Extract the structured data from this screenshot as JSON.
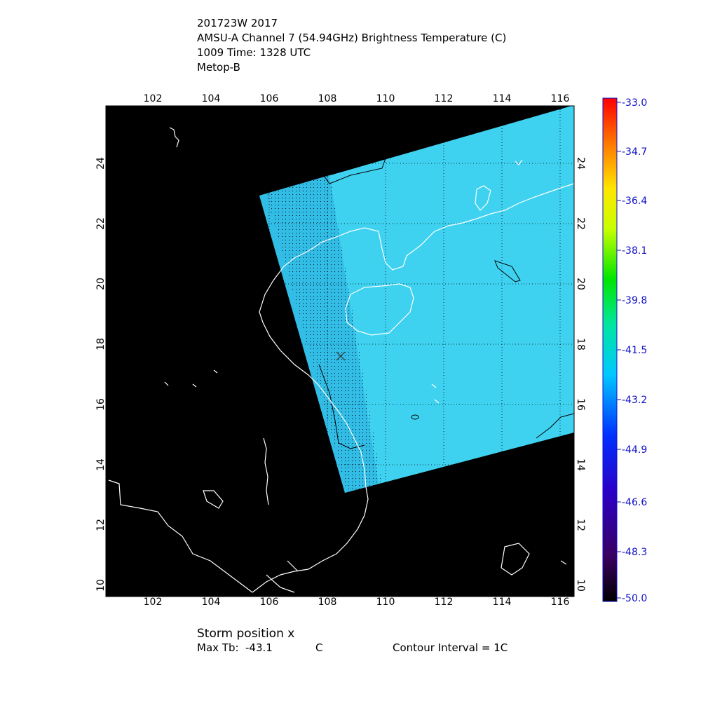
{
  "header": {
    "line1": "201723W 2017",
    "line2": "AMSU-A Channel 7 (54.94GHz) Brightness Temperature (C)",
    "line3": "1009 Time: 1328 UTC",
    "line4": "Metop-B"
  },
  "map": {
    "lon_ticks": [
      "102",
      "104",
      "106",
      "108",
      "110",
      "112",
      "114",
      "116"
    ],
    "lat_ticks": [
      "10",
      "12",
      "14",
      "16",
      "18",
      "20",
      "22",
      "24"
    ],
    "background": "#000000",
    "swath_color": "#3fd2f0",
    "coast_color": "#ffffff",
    "storm_marker": "x"
  },
  "colorbar": {
    "labels": [
      "-33.0",
      "-34.7",
      "-36.4",
      "-38.1",
      "-39.8",
      "-41.5",
      "-43.2",
      "-44.9",
      "-46.6",
      "-48.3",
      "-50.0"
    ],
    "label_color": "#1010c8"
  },
  "footer": {
    "storm": "Storm position x",
    "maxtb_label": "Max Tb:",
    "maxtb_value": "-43.1",
    "maxtb_unit": "C",
    "contour": "Contour Interval = 1C"
  }
}
